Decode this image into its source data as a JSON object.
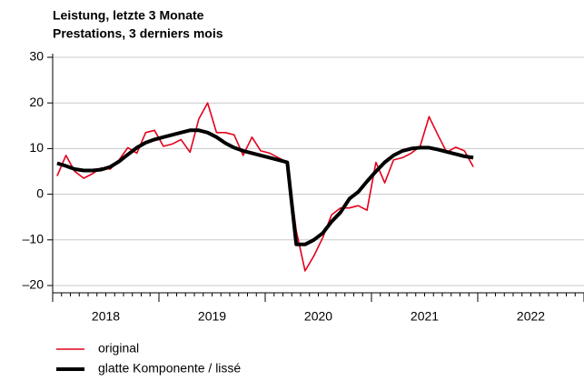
{
  "chart_data": {
    "type": "line",
    "title": "Leistung, letzte 3 Monate",
    "subtitle": "Prestations, 3 derniers mois",
    "x": [
      2018.042,
      2018.125,
      2018.208,
      2018.292,
      2018.375,
      2018.458,
      2018.542,
      2018.625,
      2018.708,
      2018.792,
      2018.875,
      2018.958,
      2019.042,
      2019.125,
      2019.208,
      2019.292,
      2019.375,
      2019.458,
      2019.542,
      2019.625,
      2019.708,
      2019.792,
      2019.875,
      2019.958,
      2020.042,
      2020.125,
      2020.208,
      2020.292,
      2020.375,
      2020.458,
      2020.542,
      2020.625,
      2020.708,
      2020.792,
      2020.875,
      2020.958,
      2021.042,
      2021.125,
      2021.208,
      2021.292,
      2021.375,
      2021.458,
      2021.542,
      2021.625,
      2021.708,
      2021.792,
      2021.875,
      2021.958
    ],
    "series": [
      {
        "name": "original",
        "color": "#e3001b",
        "width": 1.6,
        "values": [
          4,
          8.5,
          5,
          3.5,
          4.5,
          5.8,
          5.5,
          7.5,
          10.2,
          9,
          13.5,
          14,
          10.5,
          11,
          12,
          9.2,
          16.5,
          20,
          13.5,
          13.5,
          13,
          8.5,
          12.5,
          9.5,
          9,
          8,
          7,
          -8,
          -16.8,
          -13.5,
          -9.5,
          -4.5,
          -3,
          -3,
          -2.5,
          -3.5,
          7,
          2.5,
          7.5,
          8,
          9,
          10.5,
          17,
          13,
          9.2,
          10.3,
          9.5,
          6
        ]
      },
      {
        "name": "glatte Komponente / lissé",
        "color": "#000000",
        "width": 4,
        "values": [
          6.8,
          6.2,
          5.5,
          5.2,
          5.2,
          5.4,
          6,
          7.2,
          8.7,
          10.2,
          11.3,
          12,
          12.5,
          13,
          13.5,
          14,
          14,
          13.5,
          12.5,
          11.2,
          10.2,
          9.5,
          9,
          8.5,
          8,
          7.5,
          7,
          -11,
          -11,
          -10,
          -8.5,
          -6,
          -4,
          -1,
          0.5,
          2.8,
          5,
          7,
          8.5,
          9.5,
          10,
          10.2,
          10.2,
          9.8,
          9.3,
          8.8,
          8.3,
          8
        ]
      }
    ],
    "xlim": [
      2018,
      2023
    ],
    "xticks": [
      {
        "value": 2018.5,
        "label": "2018"
      },
      {
        "value": 2019.5,
        "label": "2019"
      },
      {
        "value": 2020.5,
        "label": "2020"
      },
      {
        "value": 2021.5,
        "label": "2021"
      },
      {
        "value": 2022.5,
        "label": "2022"
      }
    ],
    "ylim": [
      -20,
      30
    ],
    "yticks": [
      {
        "value": -20,
        "label": "–20"
      },
      {
        "value": -10,
        "label": "–10"
      },
      0,
      10,
      20,
      30
    ],
    "grid": true,
    "legend": "bottom-left"
  }
}
